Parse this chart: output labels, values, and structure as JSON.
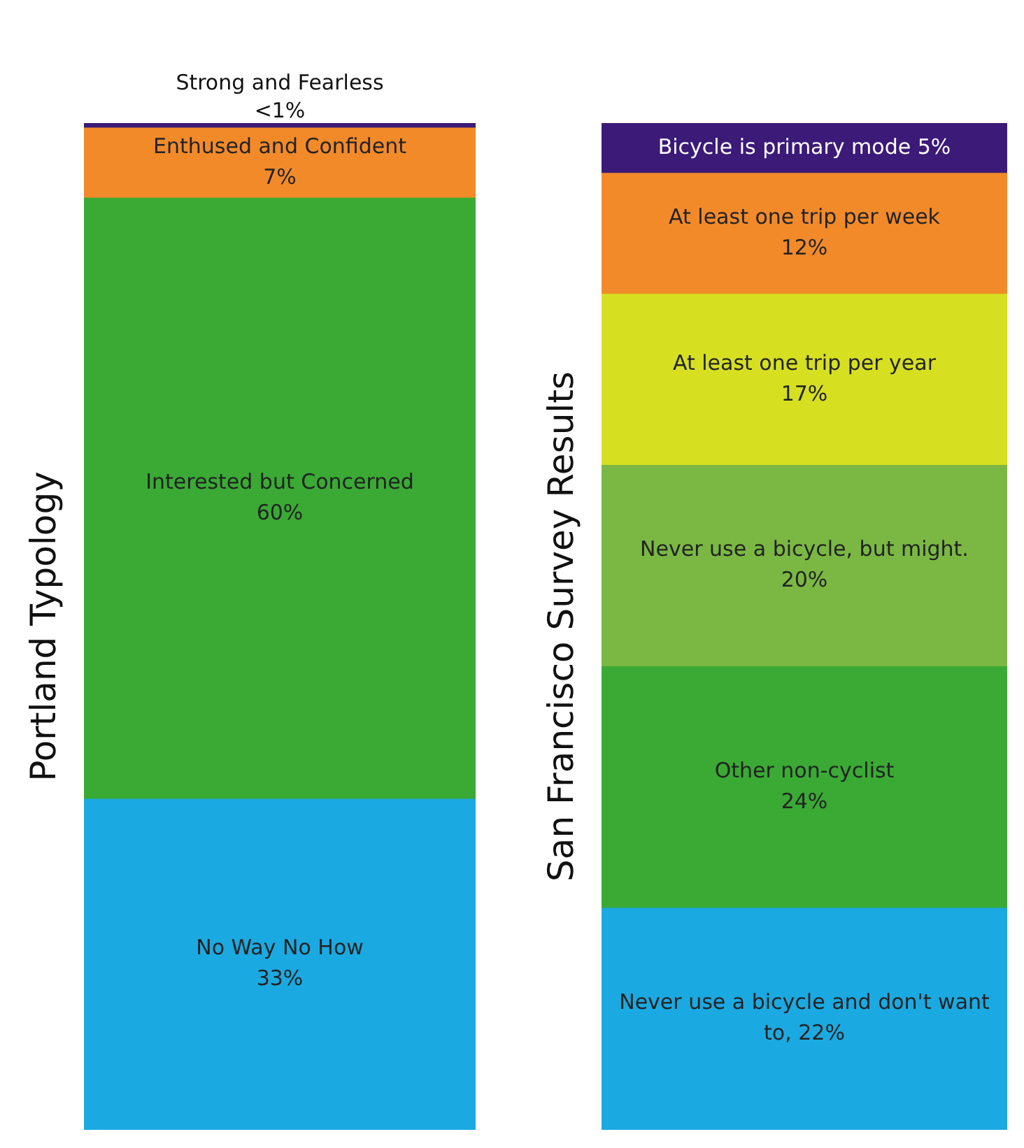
{
  "chart_data": [
    {
      "type": "bar",
      "ylabel": "Portland Typology",
      "categories": [
        null
      ],
      "stacked": true,
      "legend": false,
      "series": [
        {
          "name": "No Way No How",
          "color": "#1ba9e1",
          "values": [
            33
          ],
          "value_labels": [
            "33%"
          ]
        },
        {
          "name": "Interested but Concerned",
          "color": "#3aaa35",
          "values": [
            60
          ],
          "value_labels": [
            "60%"
          ]
        },
        {
          "name": "Enthused and Confident",
          "color": "#f28a2a",
          "values": [
            7
          ],
          "value_labels": [
            "7%"
          ]
        },
        {
          "name": "Strong and Fearless",
          "color": "#3b1a78",
          "values": [
            0.5
          ],
          "value_labels": [
            "<1%"
          ]
        }
      ]
    },
    {
      "type": "bar",
      "ylabel": "San Francisco Survey Results",
      "categories": [
        null
      ],
      "stacked": true,
      "legend": false,
      "series": [
        {
          "name": "Never use a bicycle and don't want to,",
          "color": "#1ba9e1",
          "values": [
            22
          ],
          "value_labels": [
            "22%"
          ]
        },
        {
          "name": "Other non-cyclist",
          "color": "#3aaa35",
          "values": [
            24
          ],
          "value_labels": [
            "24%"
          ]
        },
        {
          "name": "Never use a bicycle, but might.",
          "color": "#7ab843",
          "values": [
            20
          ],
          "value_labels": [
            "20%"
          ]
        },
        {
          "name": "At least one trip per year",
          "color": "#d6e021",
          "values": [
            17
          ],
          "value_labels": [
            "17%"
          ]
        },
        {
          "name": "At least one trip per week",
          "color": "#f28a2a",
          "values": [
            12
          ],
          "value_labels": [
            "12%"
          ]
        },
        {
          "name": "Bicycle is primary mode",
          "color": "#3b1a78",
          "values": [
            5
          ],
          "value_labels": [
            "5%"
          ]
        }
      ]
    }
  ]
}
